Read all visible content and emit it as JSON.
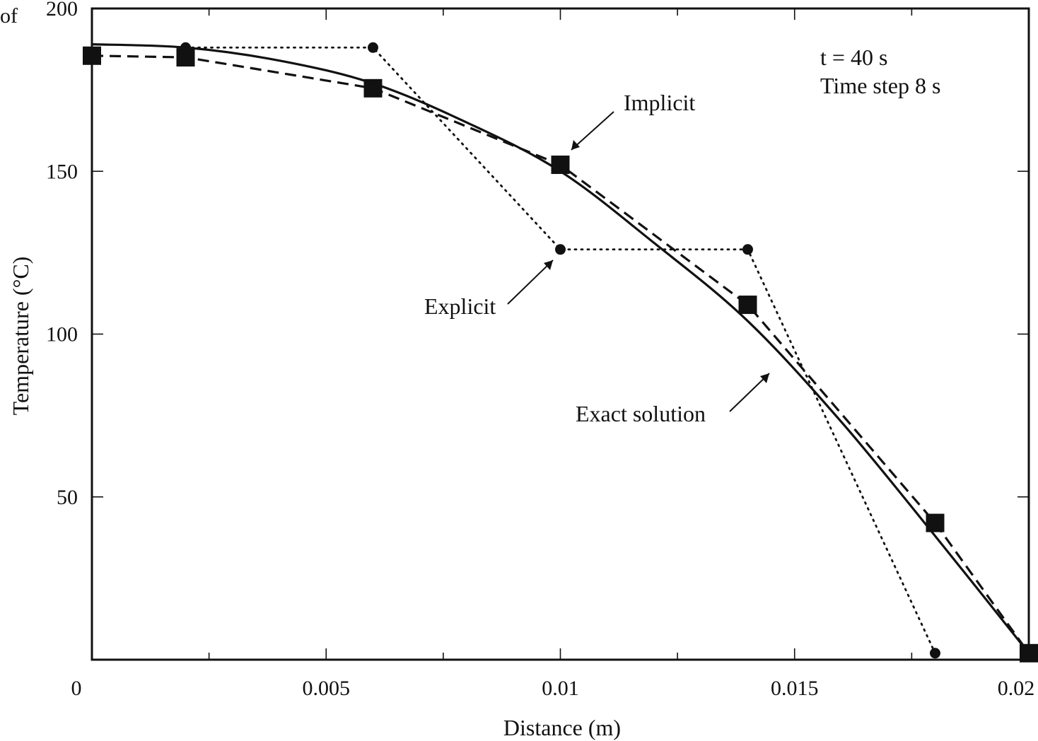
{
  "page_fragment": "of",
  "chart_data": {
    "type": "line",
    "title": "",
    "xlabel": "Distance (m)",
    "ylabel": "Temperature (°C)",
    "xlim": [
      0,
      0.02
    ],
    "ylim": [
      0,
      200
    ],
    "x_ticks": [
      0,
      0.005,
      0.01,
      0.015,
      0.02
    ],
    "x_tick_labels": [
      "0",
      "0.005",
      "0.01",
      "0.015",
      "0.02"
    ],
    "y_ticks": [
      50,
      100,
      150,
      200
    ],
    "y_tick_labels": [
      "50",
      "100",
      "150",
      "200"
    ],
    "grid": false,
    "series": [
      {
        "name": "Exact solution",
        "style": "solid",
        "marker": "none",
        "x": [
          0,
          0.002,
          0.004,
          0.006,
          0.008,
          0.01,
          0.012,
          0.014,
          0.016,
          0.018,
          0.02
        ],
        "y": [
          189,
          188,
          184,
          177,
          165,
          150,
          128,
          104,
          73,
          38,
          2
        ]
      },
      {
        "name": "Implicit",
        "style": "dashed",
        "marker": "square",
        "x": [
          0,
          0.002,
          0.006,
          0.01,
          0.014,
          0.018,
          0.02
        ],
        "y": [
          185.5,
          185,
          175.5,
          152,
          109,
          42,
          2
        ]
      },
      {
        "name": "Explicit",
        "style": "dotted",
        "marker": "circle",
        "x": [
          0.002,
          0.006,
          0.01,
          0.014,
          0.018
        ],
        "y": [
          188,
          188,
          126,
          126,
          2
        ]
      }
    ],
    "annotations": {
      "condition_line1": "t = 40 s",
      "condition_line2": "Time step 8 s",
      "implicit_label": "Implicit",
      "explicit_label": "Explicit",
      "exact_label": "Exact solution"
    }
  }
}
